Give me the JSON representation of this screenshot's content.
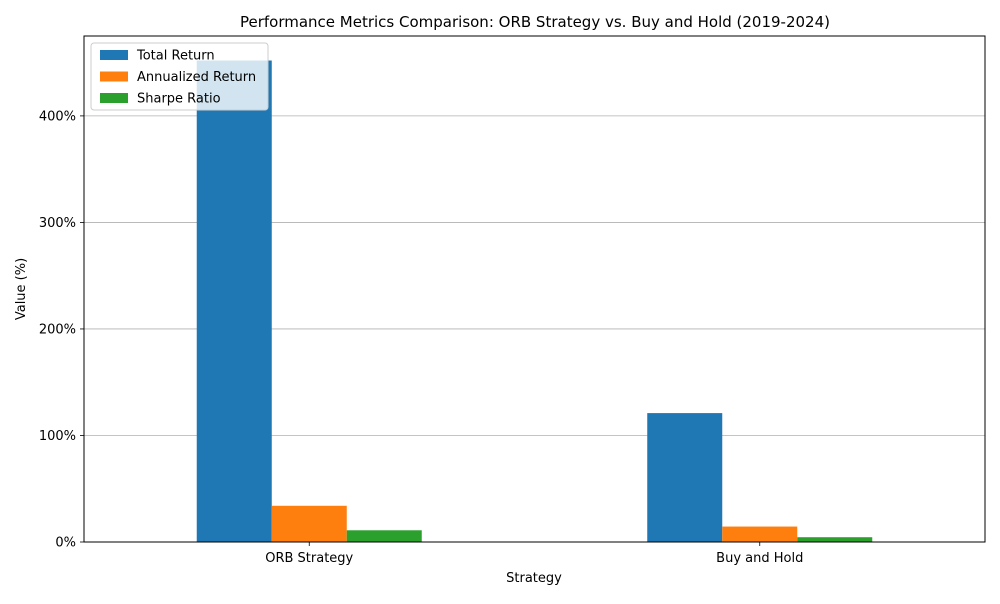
{
  "chart_data": {
    "type": "bar",
    "title": "Performance Metrics Comparison: ORB Strategy vs. Buy and Hold (2019-2024)",
    "xlabel": "Strategy",
    "ylabel": "Value (%)",
    "categories": [
      "ORB Strategy",
      "Buy and Hold"
    ],
    "series": [
      {
        "name": "Total Return",
        "values": [
          452,
          121
        ],
        "color": "#1f77b4"
      },
      {
        "name": "Annualized Return",
        "values": [
          34,
          14.5
        ],
        "color": "#ff7f0e"
      },
      {
        "name": "Sharpe Ratio",
        "values": [
          11,
          4.5
        ],
        "color": "#2ca02c"
      }
    ],
    "ylim": [
      0,
      475
    ],
    "yticks": [
      0,
      100,
      200,
      300,
      400
    ],
    "ytick_labels": [
      "0%",
      "100%",
      "200%",
      "300%",
      "400%"
    ],
    "grid": "y",
    "legend_position": "top-left"
  }
}
